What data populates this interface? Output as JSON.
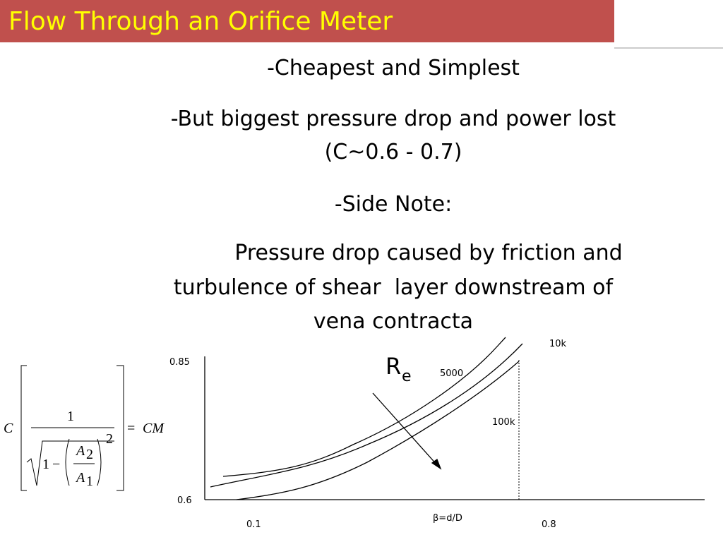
{
  "header": {
    "title": "Flow Through an Orifice Meter"
  },
  "body": {
    "lines": [
      "-Cheapest and Simplest",
      "-But biggest pressure drop and power lost",
      "(C~0.6 - 0.7)",
      "-Side Note:",
      "Pressure drop caused by friction and",
      "turbulence of shear  layer downstream of",
      "vena contracta"
    ]
  },
  "formula": {
    "coefficient": "C",
    "numerator": "1",
    "one": "1",
    "minus": "−",
    "a_top": "A",
    "a_top_sub": "2",
    "a_bottom": "A",
    "a_bottom_sub": "1",
    "exponent": "2",
    "equals": "=",
    "result": "CM"
  },
  "figure": {
    "y_labels": [
      "0.85",
      "0.6"
    ],
    "x_labels": [
      "0.1",
      "0.8"
    ],
    "x_axis_label": "β=d/D",
    "re": "R",
    "re_sub": "e",
    "curve_labels": [
      "10k",
      "5000",
      "100k"
    ]
  }
}
